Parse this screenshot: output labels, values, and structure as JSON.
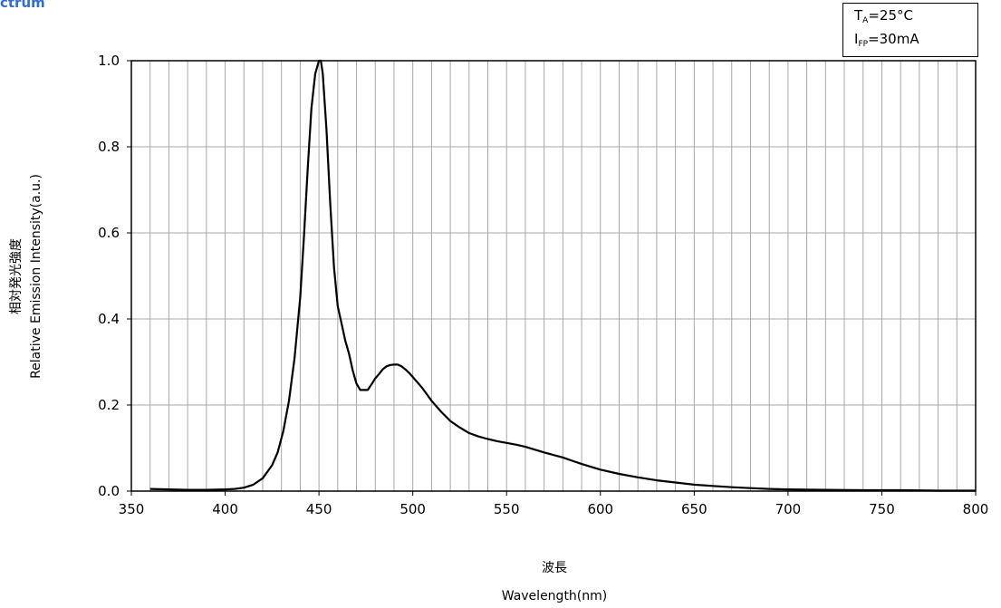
{
  "header": {
    "partial_label": "ctrum"
  },
  "conditions": {
    "line1_main": "T",
    "line1_sub": "A",
    "line1_rest": "=25°C",
    "line2_main": "I",
    "line2_sub": "FP",
    "line2_rest": "=30mA"
  },
  "chart_data": {
    "type": "line",
    "title": "",
    "ylabel_jp": "相対発光強度",
    "ylabel": "Relative Emission Intensity(a.u.)",
    "xlabel_jp": "波長",
    "xlabel": "Wavelength(nm)",
    "xlim": [
      350,
      800
    ],
    "ylim": [
      0,
      1.0
    ],
    "xticks": [
      "350",
      "400",
      "450",
      "500",
      "550",
      "600",
      "650",
      "700",
      "750",
      "800"
    ],
    "yticks": [
      "0.0",
      "0.2",
      "0.4",
      "0.6",
      "0.8",
      "1.0"
    ],
    "grid": true,
    "minor_x_step": 10,
    "color": "#000000",
    "series": [
      {
        "x": [
          360,
          370,
          380,
          390,
          400,
          405,
          410,
          415,
          420,
          425,
          428,
          431,
          434,
          437,
          440,
          442,
          444,
          446,
          448,
          450,
          451,
          452,
          454,
          456,
          458,
          460,
          462,
          464,
          466,
          468,
          470,
          472,
          474,
          476,
          478,
          480,
          482,
          484,
          486,
          488,
          490,
          492,
          494,
          496,
          498,
          500,
          505,
          510,
          515,
          520,
          525,
          530,
          535,
          540,
          545,
          550,
          555,
          560,
          570,
          580,
          590,
          600,
          610,
          620,
          630,
          640,
          650,
          660,
          670,
          680,
          690,
          700,
          720,
          740,
          760,
          780,
          800
        ],
        "y": [
          0.005,
          0.004,
          0.003,
          0.003,
          0.004,
          0.005,
          0.008,
          0.015,
          0.03,
          0.06,
          0.09,
          0.14,
          0.21,
          0.31,
          0.45,
          0.59,
          0.75,
          0.89,
          0.97,
          1.0,
          1.0,
          0.97,
          0.84,
          0.67,
          0.52,
          0.43,
          0.39,
          0.35,
          0.32,
          0.28,
          0.25,
          0.235,
          0.235,
          0.235,
          0.248,
          0.262,
          0.272,
          0.283,
          0.29,
          0.293,
          0.294,
          0.294,
          0.29,
          0.283,
          0.275,
          0.265,
          0.24,
          0.21,
          0.185,
          0.163,
          0.148,
          0.135,
          0.127,
          0.121,
          0.116,
          0.112,
          0.108,
          0.103,
          0.09,
          0.078,
          0.063,
          0.05,
          0.04,
          0.032,
          0.025,
          0.02,
          0.015,
          0.012,
          0.009,
          0.007,
          0.005,
          0.004,
          0.003,
          0.002,
          0.002,
          0.001,
          0.001
        ]
      }
    ]
  }
}
